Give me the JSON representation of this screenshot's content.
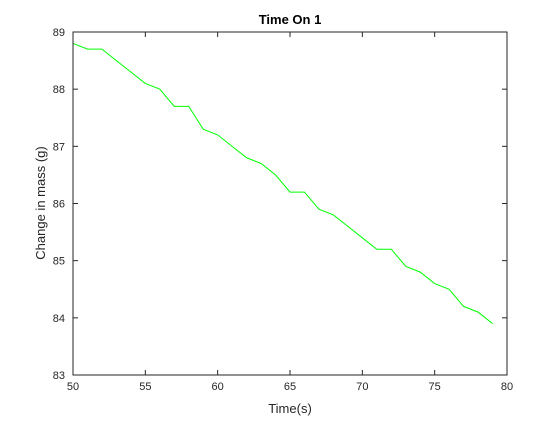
{
  "chart_data": {
    "type": "line",
    "title": "Time On 1",
    "xlabel": "Time(s)",
    "ylabel": "Change in mass (g)",
    "xlim": [
      50,
      80
    ],
    "ylim": [
      83,
      89
    ],
    "xticks": [
      50,
      55,
      60,
      65,
      70,
      75,
      80
    ],
    "yticks": [
      83,
      84,
      85,
      86,
      87,
      88,
      89
    ],
    "grid": false,
    "legend": "none",
    "series": [
      {
        "color": "#00ff00",
        "x": [
          50,
          51,
          52,
          53,
          54,
          55,
          56,
          57,
          58,
          59,
          60,
          61,
          62,
          63,
          64,
          65,
          66,
          67,
          68,
          69,
          70,
          71,
          72,
          73,
          74,
          75,
          76,
          77,
          78,
          79
        ],
        "y": [
          88.8,
          88.7,
          88.7,
          88.5,
          88.3,
          88.1,
          88.0,
          87.7,
          87.7,
          87.3,
          87.2,
          87.0,
          86.8,
          86.7,
          86.5,
          86.2,
          86.2,
          85.9,
          85.8,
          85.6,
          85.4,
          85.2,
          85.2,
          84.9,
          84.8,
          84.6,
          84.5,
          84.2,
          84.1,
          83.9
        ]
      }
    ]
  }
}
